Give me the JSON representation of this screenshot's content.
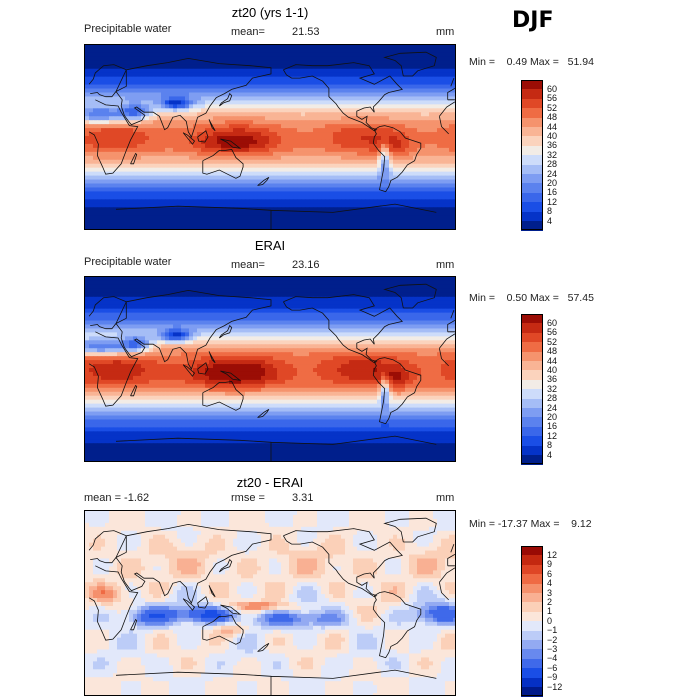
{
  "season": "DJF",
  "colors": {
    "abs_scale": [
      "#001f8c",
      "#0533c8",
      "#1a4ee6",
      "#3a67ea",
      "#5b82ee",
      "#7e9df2",
      "#a5bdf6",
      "#cddcfa",
      "#f2ece6",
      "#fbd3bd",
      "#f9b495",
      "#f5936d",
      "#ef6c44",
      "#e04826",
      "#c52a13",
      "#9b0d05"
    ],
    "diff_scale": [
      "#001a8a",
      "#0530c4",
      "#1a4ee6",
      "#3f69ea",
      "#6889ee",
      "#93aaf2",
      "#bcccf7",
      "#e2e8fa",
      "#fbe6da",
      "#fbd0b8",
      "#f9b093",
      "#f5906c",
      "#ef6a44",
      "#df4626",
      "#c42810",
      "#990a04"
    ]
  },
  "panels": [
    {
      "title": "zt20 (yrs 1-1)",
      "left_label": "Precipitable water",
      "stat_label": "mean=",
      "stat_value": "21.53",
      "units": "mm",
      "minmax": "Min =    0.49 Max =   51.94"
    },
    {
      "title": "ERAI",
      "left_label": "Precipitable water",
      "stat_label": "mean=",
      "stat_value": "23.16",
      "units": "mm",
      "minmax": "Min =    0.50 Max =   57.45"
    },
    {
      "title": "zt20 - ERAI",
      "left_label": "mean =   -1.62",
      "stat_label": "rmse =",
      "stat_value": "3.31",
      "units": "mm",
      "minmax": "Min = -17.37 Max =    9.12"
    }
  ],
  "chart_data": [
    {
      "type": "heatmap",
      "title": "zt20 (yrs 1-1)",
      "variable": "Precipitable water",
      "units": "mm",
      "mean": 21.53,
      "min": 0.49,
      "max": 51.94,
      "colorbar_levels": [
        "60",
        "56",
        "52",
        "48",
        "44",
        "40",
        "36",
        "32",
        "28",
        "24",
        "20",
        "16",
        "12",
        "8",
        "4"
      ]
    },
    {
      "type": "heatmap",
      "title": "ERAI",
      "variable": "Precipitable water",
      "units": "mm",
      "mean": 23.16,
      "min": 0.5,
      "max": 57.45,
      "colorbar_levels": [
        "60",
        "56",
        "52",
        "48",
        "44",
        "40",
        "36",
        "32",
        "28",
        "24",
        "20",
        "16",
        "12",
        "8",
        "4"
      ]
    },
    {
      "type": "heatmap",
      "title": "zt20 - ERAI",
      "units": "mm",
      "mean": -1.62,
      "rmse": 3.31,
      "min": -17.37,
      "max": 9.12,
      "colorbar_levels": [
        "12",
        "9",
        "6",
        "4",
        "3",
        "2",
        "1",
        "0",
        "−1",
        "−2",
        "−3",
        "−4",
        "−6",
        "−9",
        "−12"
      ]
    }
  ]
}
